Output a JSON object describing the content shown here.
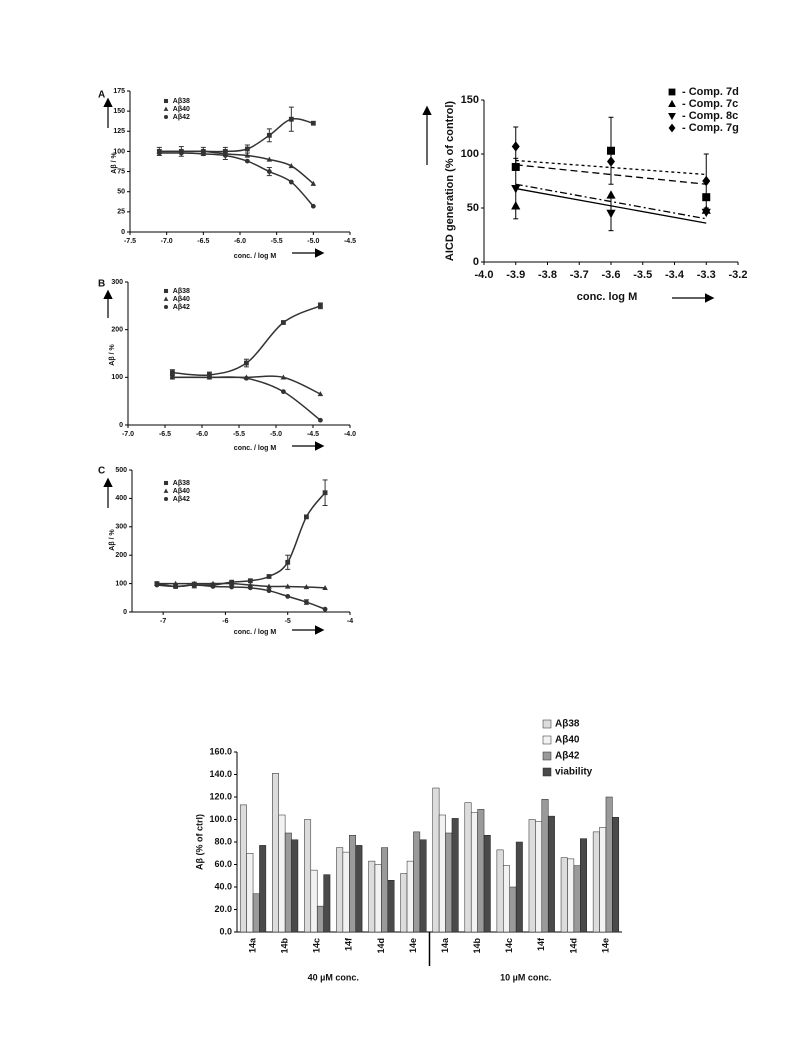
{
  "chart_data": [
    {
      "type": "scatter",
      "panel": "A",
      "y_label": "Aβ / %",
      "x_label": "conc. / log M",
      "x": [
        -7.1,
        -6.8,
        -6.5,
        -6.2,
        -5.9,
        -5.6,
        -5.3,
        -5.0
      ],
      "xlim": [
        -7.5,
        -4.5
      ],
      "xticks": [
        -7.5,
        {
          "value": -7,
          "label": "-7.0"
        },
        -6.5,
        {
          "value": -6,
          "label": "-6.0"
        },
        -5.5,
        {
          "value": -5,
          "label": "-5.0"
        },
        -4.5
      ],
      "ylim": [
        0,
        175
      ],
      "yticks": [
        0,
        25,
        50,
        75,
        100,
        125,
        150,
        175
      ],
      "series": [
        {
          "name": "Aβ38",
          "marker": "square",
          "color": "#333333",
          "values": [
            100,
            100,
            100,
            100,
            103,
            120,
            140,
            135
          ],
          "errors": [
            5,
            6,
            5,
            5,
            5,
            8,
            15,
            null
          ]
        },
        {
          "name": "Aβ40",
          "marker": "triangle",
          "color": "#333333",
          "values": [
            100,
            100,
            100,
            97,
            95,
            90,
            82,
            60
          ],
          "errors": [
            null,
            null,
            null,
            null,
            null,
            null,
            null,
            null
          ]
        },
        {
          "name": "Aβ42",
          "marker": "circle",
          "color": "#333333",
          "values": [
            98,
            98,
            97,
            95,
            88,
            75,
            62,
            32
          ],
          "errors": [
            null,
            null,
            null,
            5,
            null,
            5,
            null,
            null
          ]
        }
      ]
    },
    {
      "type": "scatter",
      "panel": "B",
      "y_label": "Aβ / %",
      "x_label": "conc. / log M",
      "x": [
        -6.4,
        -5.9,
        -5.4,
        -4.9,
        -4.4
      ],
      "xlim": [
        -7,
        -4
      ],
      "xticks": [
        {
          "value": -7,
          "label": "-7.0"
        },
        -6.5,
        {
          "value": -6,
          "label": "-6.0"
        },
        -5.5,
        {
          "value": -5,
          "label": "-5.0"
        },
        -4.5,
        {
          "value": -4,
          "label": "-4.0"
        }
      ],
      "ylim": [
        0,
        300
      ],
      "yticks": [
        0,
        100,
        200,
        300
      ],
      "series": [
        {
          "name": "Aβ38",
          "marker": "square",
          "color": "#333333",
          "values": [
            110,
            105,
            130,
            215,
            250
          ],
          "errors": [
            6,
            6,
            8,
            null,
            6
          ]
        },
        {
          "name": "Aβ40",
          "marker": "triangle",
          "color": "#333333",
          "values": [
            100,
            100,
            100,
            100,
            65
          ],
          "errors": [
            null,
            null,
            null,
            null,
            null
          ]
        },
        {
          "name": "Aβ42",
          "marker": "circle",
          "color": "#333333",
          "values": [
            100,
            100,
            98,
            70,
            10
          ],
          "errors": [
            null,
            null,
            null,
            null,
            null
          ]
        }
      ]
    },
    {
      "type": "scatter",
      "panel": "C",
      "y_label": "Aβ / %",
      "x_label": "conc. / log M",
      "x": [
        -7.1,
        -6.8,
        -6.5,
        -6.2,
        -5.9,
        -5.6,
        -5.3,
        -5.0,
        -4.7,
        -4.4
      ],
      "xlim": [
        -7.5,
        -4
      ],
      "xticks": [
        -7,
        -6,
        -5,
        -4
      ],
      "ylim": [
        0,
        500
      ],
      "yticks": [
        0,
        100,
        200,
        300,
        400,
        500
      ],
      "series": [
        {
          "name": "Aβ38",
          "marker": "square",
          "color": "#333333",
          "values": [
            100,
            90,
            95,
            95,
            105,
            110,
            125,
            175,
            335,
            420
          ],
          "errors": [
            5,
            null,
            10,
            null,
            null,
            null,
            null,
            25,
            null,
            45
          ]
        },
        {
          "name": "Aβ40",
          "marker": "triangle",
          "color": "#333333",
          "values": [
            100,
            100,
            100,
            100,
            100,
            95,
            90,
            90,
            88,
            85
          ],
          "errors": [
            null,
            null,
            null,
            null,
            null,
            null,
            null,
            null,
            null,
            null
          ]
        },
        {
          "name": "Aβ42",
          "marker": "circle",
          "color": "#333333",
          "values": [
            95,
            90,
            95,
            90,
            88,
            85,
            75,
            55,
            35,
            10
          ],
          "errors": [
            null,
            null,
            null,
            null,
            null,
            null,
            null,
            null,
            8,
            null
          ]
        }
      ]
    },
    {
      "type": "scatter",
      "y_label": "AICD generation (% of control)",
      "x_label": "conc. log M",
      "x": [
        -3.9,
        -3.6,
        -3.3
      ],
      "xlim": [
        -4,
        -3.2
      ],
      "xticks": [
        {
          "value": -4,
          "label": "-4.0"
        },
        -3.9,
        -3.8,
        -3.7,
        -3.6,
        -3.5,
        -3.4,
        -3.3,
        -3.2
      ],
      "ylim": [
        0,
        150
      ],
      "yticks": [
        0,
        50,
        100,
        150
      ],
      "series": [
        {
          "name": "- Comp. 7d",
          "marker": "square",
          "color": "#000000",
          "values": [
            88,
            103,
            60
          ],
          "errors": [
            null,
            31,
            null
          ],
          "trend": [
            90,
            72
          ],
          "line_style": "dashed"
        },
        {
          "name": "- Comp. 7c",
          "marker": "triangle",
          "color": "#000000",
          "values": [
            52,
            62,
            48
          ],
          "errors": [
            null,
            null,
            null
          ],
          "trend": [
            68,
            36
          ],
          "line_style": "solid"
        },
        {
          "name": "- Comp. 8c",
          "marker": "triangle-down",
          "color": "#000000",
          "values": [
            68,
            45,
            46
          ],
          "errors": [
            28,
            16,
            null
          ],
          "trend": [
            72,
            40
          ],
          "line_style": "dashdot"
        },
        {
          "name": "- Comp. 7g",
          "marker": "diamond",
          "color": "#000000",
          "values": [
            107,
            93,
            75
          ],
          "errors": [
            18,
            null,
            25
          ],
          "trend": [
            94,
            81
          ],
          "line_style": "dotted"
        }
      ]
    },
    {
      "type": "bar",
      "y_label": "Aβ (% of ctrl)",
      "categories": [
        "14a",
        "14b",
        "14c",
        "14f",
        "14d",
        "14e",
        "14a",
        "14b",
        "14c",
        "14f",
        "14d",
        "14e"
      ],
      "groups": [
        "40 µM conc.",
        "10 µM conc."
      ],
      "ylim": [
        0,
        160
      ],
      "yticks": [
        {
          "value": 0,
          "label": "0.0"
        },
        {
          "value": 20,
          "label": "20.0"
        },
        {
          "value": 40,
          "label": "40.0"
        },
        {
          "value": 60,
          "label": "60.0"
        },
        {
          "value": 80,
          "label": "80.0"
        },
        {
          "value": 100,
          "label": "100.0"
        },
        {
          "value": 120,
          "label": "120.0"
        },
        {
          "value": 140,
          "label": "140.0"
        },
        {
          "value": 160,
          "label": "160.0"
        }
      ],
      "series": [
        {
          "name": "Aβ38",
          "color": "#dcdcdc",
          "values": [
            113,
            141,
            100,
            75,
            63,
            52,
            128,
            115,
            73,
            100,
            66,
            89
          ]
        },
        {
          "name": "Aβ40",
          "color": "#f2f2f2",
          "values": [
            70,
            104,
            55,
            71,
            60,
            63,
            104,
            106,
            59,
            98,
            65,
            93
          ]
        },
        {
          "name": "Aβ42",
          "color": "#9a9a9a",
          "values": [
            34,
            88,
            23,
            86,
            75,
            89,
            88,
            109,
            40,
            118,
            59,
            120
          ]
        },
        {
          "name": "viability",
          "color": "#4a4a4a",
          "values": [
            77,
            82,
            51,
            77,
            46,
            82,
            101,
            86,
            80,
            103,
            83,
            102
          ]
        }
      ]
    }
  ]
}
